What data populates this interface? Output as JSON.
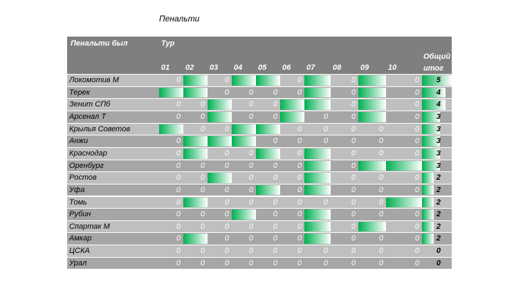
{
  "header": {
    "title": "Пенальти",
    "row_label": "Пенальти был",
    "col_label": "Тур",
    "total_label": "Общий итог",
    "tours": [
      "01",
      "02",
      "03",
      "04",
      "05",
      "06",
      "07",
      "08",
      "09",
      "10"
    ]
  },
  "table": {
    "rows": [
      {
        "name": "Локомотив М",
        "values": [
          0,
          1,
          0,
          1,
          1,
          0,
          1,
          0,
          1,
          0
        ],
        "total": 5
      },
      {
        "name": "Терек",
        "values": [
          1,
          1,
          0,
          0,
          0,
          0,
          1,
          0,
          1,
          0
        ],
        "total": 4
      },
      {
        "name": "Зенит СПб",
        "values": [
          0,
          0,
          1,
          0,
          0,
          1,
          1,
          0,
          1,
          0
        ],
        "total": 4
      },
      {
        "name": "Арсенал Т",
        "values": [
          0,
          0,
          1,
          0,
          0,
          1,
          0,
          0,
          1,
          0
        ],
        "total": 3
      },
      {
        "name": "Крылья Советов",
        "values": [
          1,
          0,
          0,
          1,
          1,
          0,
          0,
          0,
          0,
          0
        ],
        "total": 3
      },
      {
        "name": "Анжи",
        "values": [
          0,
          1,
          1,
          1,
          0,
          0,
          0,
          0,
          0,
          0
        ],
        "total": 3
      },
      {
        "name": "Краснодар",
        "values": [
          0,
          1,
          0,
          0,
          1,
          0,
          1,
          0,
          0,
          0
        ],
        "total": 3
      },
      {
        "name": "Оренбург",
        "values": [
          0,
          0,
          0,
          0,
          0,
          0,
          1,
          0,
          1,
          1
        ],
        "total": 3
      },
      {
        "name": "Ростов",
        "values": [
          0,
          0,
          1,
          0,
          0,
          0,
          1,
          0,
          0,
          0
        ],
        "total": 2
      },
      {
        "name": "Уфа",
        "values": [
          0,
          0,
          0,
          0,
          1,
          0,
          1,
          0,
          0,
          0
        ],
        "total": 2
      },
      {
        "name": "Томь",
        "values": [
          0,
          1,
          0,
          0,
          0,
          0,
          0,
          0,
          0,
          1
        ],
        "total": 2
      },
      {
        "name": "Рубин",
        "values": [
          0,
          0,
          0,
          1,
          0,
          0,
          1,
          0,
          0,
          0
        ],
        "total": 2
      },
      {
        "name": "Спартак М",
        "values": [
          0,
          0,
          0,
          0,
          0,
          0,
          1,
          0,
          1,
          0
        ],
        "total": 2
      },
      {
        "name": "Амкар",
        "values": [
          0,
          1,
          0,
          0,
          0,
          0,
          1,
          0,
          0,
          0
        ],
        "total": 2
      },
      {
        "name": "ЦСКА",
        "values": [
          0,
          0,
          0,
          0,
          0,
          0,
          0,
          0,
          0,
          0
        ],
        "total": 0
      },
      {
        "name": "Урал",
        "values": [
          0,
          0,
          0,
          0,
          0,
          0,
          0,
          0,
          0,
          0
        ],
        "total": 0
      }
    ]
  }
}
